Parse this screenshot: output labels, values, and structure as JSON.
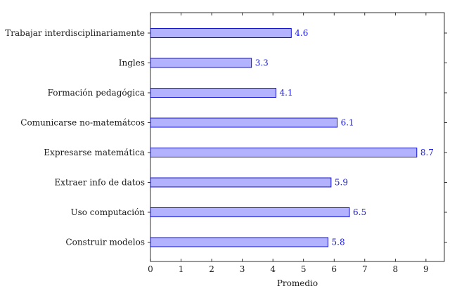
{
  "chart_data": {
    "type": "bar",
    "orientation": "horizontal",
    "categories": [
      "Trabajar interdisciplinariamente",
      "Ingles",
      "Formación pedagógica",
      "Comunicarse no-matemátcos",
      "Expresarse matemática",
      "Extraer info de datos",
      "Uso computación",
      "Construir modelos"
    ],
    "values": [
      4.6,
      3.3,
      4.1,
      6.1,
      8.7,
      5.9,
      6.5,
      5.8
    ],
    "value_labels": [
      "4.6",
      "3.3",
      "4.1",
      "6.1",
      "8.7",
      "5.9",
      "6.5",
      "5.8"
    ],
    "xlabel": "Promedio",
    "ylabel": "",
    "title": "",
    "xlim": [
      0,
      9.6
    ],
    "xticks": [
      "0",
      "1",
      "2",
      "3",
      "4",
      "5",
      "6",
      "7",
      "8",
      "9"
    ],
    "grid": false,
    "colors": {
      "bar_fill": "#b2b2ff",
      "bar_stroke": "#0000cc",
      "value_label": "#1a1adb",
      "axis": "#000000"
    }
  }
}
